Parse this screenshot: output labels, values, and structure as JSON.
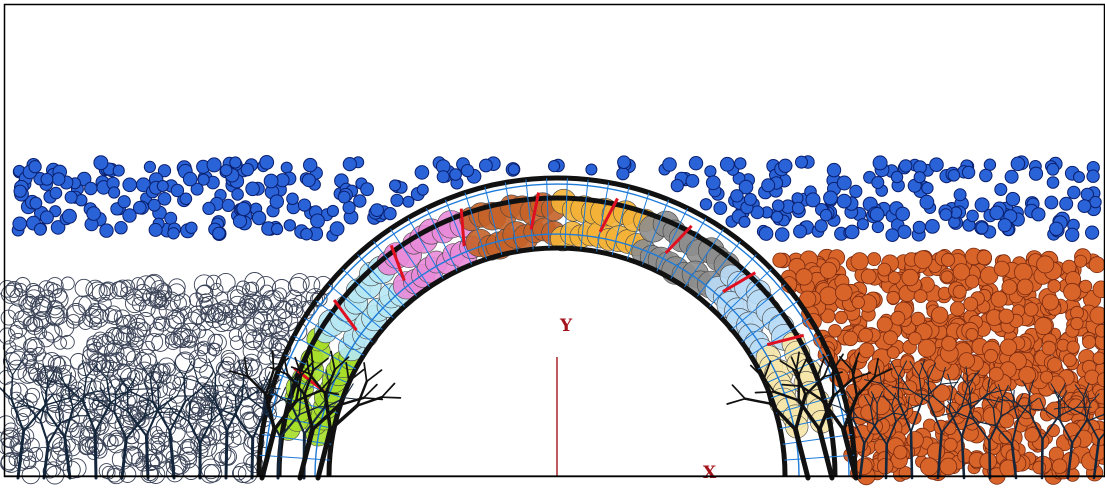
{
  "axes": {
    "y_label": "Y",
    "x_label": "X",
    "color": "#a4141c"
  },
  "palette": {
    "background": "#ffffff",
    "border": "#000000",
    "top_particles": "#2a63d8",
    "top_particles_edge": "#0a1f6e",
    "arch_beam": "#111111",
    "arch_mesh": "#1e7bd8",
    "left_soil_edge": "#3a4256",
    "left_roots": "#14263b",
    "right_soil": "#d8642a",
    "right_soil_edge": "#7a2a10",
    "crack_red": "#e01020",
    "arch_block_colors": [
      "#f6e6a8",
      "#b9dcf6",
      "#8d8d8d",
      "#f4b236",
      "#c46228",
      "#e88ad8",
      "#b6e8f4",
      "#a6de28"
    ]
  }
}
